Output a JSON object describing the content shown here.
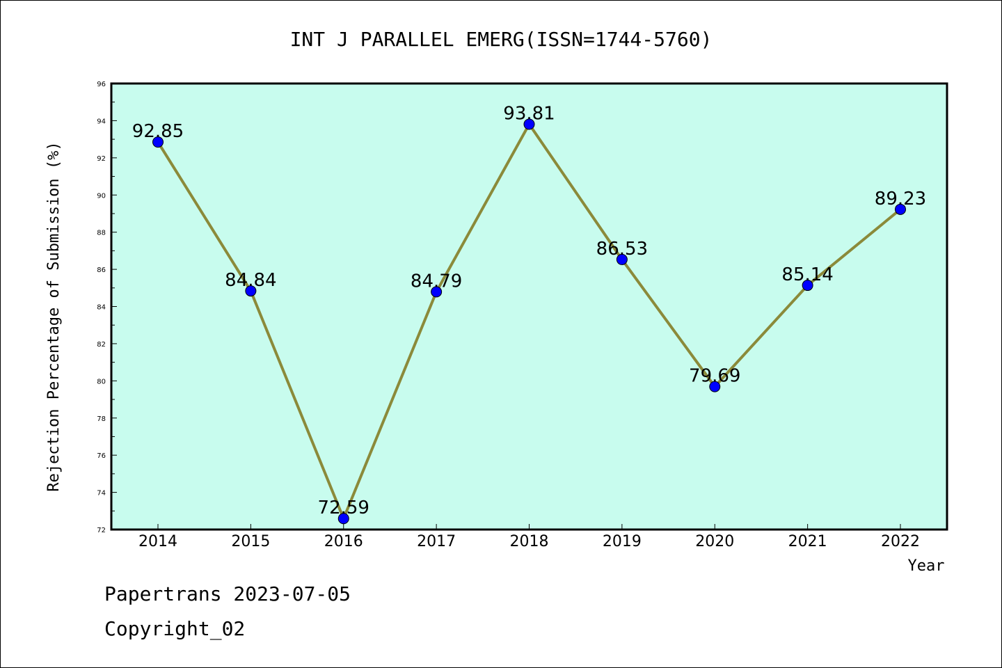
{
  "chart_data": {
    "type": "line",
    "title": "INT J PARALLEL EMERG(ISSN=1744-5760)",
    "xlabel": "Year",
    "ylabel": "Rejection Percentage of Submission (%)",
    "categories": [
      "2014",
      "2015",
      "2016",
      "2017",
      "2018",
      "2019",
      "2020",
      "2021",
      "2022"
    ],
    "values": [
      92.85,
      84.84,
      72.59,
      84.79,
      93.81,
      86.53,
      79.69,
      85.14,
      89.23
    ],
    "data_labels": [
      "92.85",
      "84.84",
      "72.59",
      "84.79",
      "93.81",
      "86.53",
      "79.69",
      "85.14",
      "89.23"
    ],
    "ylim": [
      72,
      96
    ],
    "yticks": [
      72,
      74,
      76,
      78,
      80,
      82,
      84,
      86,
      88,
      90,
      92,
      94,
      96
    ],
    "grid": false,
    "legend": "none",
    "colors": {
      "plot_background": "#c8fcee",
      "line": "#8b8a3a",
      "marker": "#0000ff"
    }
  },
  "footer": {
    "line1": "Papertrans 2023-07-05",
    "line2": "Copyright_02"
  }
}
